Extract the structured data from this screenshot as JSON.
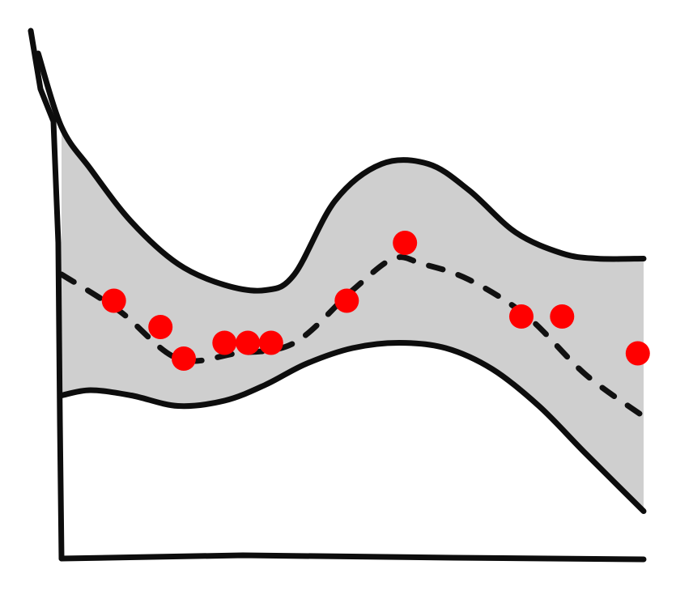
{
  "chart_data": {
    "type": "scatter",
    "title": "",
    "xlabel": "",
    "ylabel": "",
    "xlim": [
      0,
      100
    ],
    "ylim": [
      0,
      100
    ],
    "grid": false,
    "legend": "none",
    "colors": {
      "points": "#ff0000",
      "band": "#cfcfcf",
      "lines": "#0d0d0d"
    },
    "mean_x": [
      0,
      10,
      20,
      30,
      40,
      50,
      57,
      62,
      70,
      80,
      90,
      100
    ],
    "mean_y": [
      54,
      47,
      38,
      39,
      41,
      51,
      57,
      56,
      53,
      46,
      35,
      27
    ],
    "upper_x": [
      -4,
      0,
      5,
      12,
      20,
      28,
      35,
      40,
      47,
      55,
      63,
      70,
      78,
      86,
      92,
      100
    ],
    "upper_y": [
      96,
      82,
      74,
      64,
      56,
      52,
      51,
      54,
      68,
      75,
      75,
      70,
      62,
      58,
      57,
      57
    ],
    "lower_x": [
      0,
      5,
      12,
      20,
      28,
      35,
      42,
      50,
      58,
      66,
      74,
      82,
      90,
      100
    ],
    "lower_y": [
      31,
      32,
      31,
      29,
      30,
      33,
      37,
      40,
      41,
      40,
      36,
      29,
      20,
      9
    ],
    "points": [
      {
        "x": 9,
        "y": 49
      },
      {
        "x": 17,
        "y": 44
      },
      {
        "x": 21,
        "y": 38
      },
      {
        "x": 28,
        "y": 41
      },
      {
        "x": 32,
        "y": 41
      },
      {
        "x": 36,
        "y": 41
      },
      {
        "x": 49,
        "y": 49
      },
      {
        "x": 59,
        "y": 60
      },
      {
        "x": 79,
        "y": 46
      },
      {
        "x": 86,
        "y": 46
      },
      {
        "x": 99,
        "y": 39
      }
    ]
  }
}
